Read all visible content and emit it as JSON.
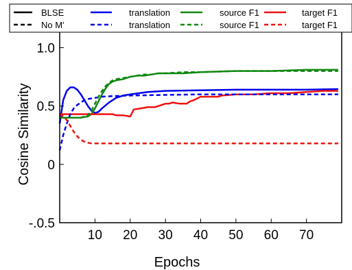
{
  "chart_data": {
    "type": "line",
    "xlabel": "Epochs",
    "ylabel": "Cosine Similarity",
    "xlim": [
      0,
      80
    ],
    "ylim": [
      -0.5,
      1.25
    ],
    "xticks": [
      10,
      20,
      30,
      40,
      50,
      60,
      70
    ],
    "yticks": [
      {
        "value": -0.5,
        "label": "-.0.5"
      },
      {
        "value": 0,
        "label": "0"
      },
      {
        "value": 0.5,
        "label": "0.5"
      },
      {
        "value": 1.0,
        "label": "1.0"
      }
    ],
    "grid": false,
    "legend_placement": "top",
    "legend": {
      "row_labels": [
        "BLSE",
        "No M'"
      ],
      "column_labels": [
        "translation",
        "source F1",
        "target F1"
      ]
    },
    "series": [
      {
        "legend_row": 0,
        "legend_col": 0,
        "color": "#0000ee",
        "dash": "solid",
        "x": [
          0,
          1,
          2,
          3,
          4,
          5,
          6,
          7,
          8,
          9,
          10,
          11,
          12,
          14,
          16,
          18,
          20,
          25,
          30,
          40,
          50,
          60,
          70,
          79
        ],
        "y": [
          0.35,
          0.55,
          0.63,
          0.66,
          0.66,
          0.64,
          0.6,
          0.55,
          0.5,
          0.46,
          0.44,
          0.45,
          0.48,
          0.53,
          0.57,
          0.59,
          0.6,
          0.62,
          0.63,
          0.635,
          0.64,
          0.64,
          0.64,
          0.645
        ]
      },
      {
        "legend_row": 0,
        "legend_col": 1,
        "color": "#118811",
        "dash": "solid",
        "x": [
          0,
          2,
          4,
          6,
          8,
          9,
          10,
          11,
          12,
          13,
          14,
          15,
          16,
          18,
          20,
          22,
          24,
          26,
          28,
          30,
          35,
          40,
          50,
          60,
          70,
          79
        ],
        "y": [
          0.4,
          0.4,
          0.4,
          0.4,
          0.41,
          0.43,
          0.48,
          0.54,
          0.6,
          0.65,
          0.69,
          0.71,
          0.72,
          0.73,
          0.75,
          0.76,
          0.76,
          0.77,
          0.78,
          0.78,
          0.78,
          0.79,
          0.8,
          0.8,
          0.81,
          0.81
        ]
      },
      {
        "legend_row": 0,
        "legend_col": 2,
        "color": "#ee1111",
        "dash": "solid",
        "x": [
          0,
          5,
          10,
          14,
          15,
          16,
          18,
          20,
          21,
          23,
          25,
          26,
          27,
          28,
          30,
          31,
          32,
          34,
          36,
          37,
          38,
          40,
          45,
          46,
          50,
          55,
          60,
          65,
          70,
          75,
          79
        ],
        "y": [
          0.43,
          0.43,
          0.43,
          0.43,
          0.43,
          0.42,
          0.42,
          0.41,
          0.47,
          0.48,
          0.49,
          0.49,
          0.49,
          0.5,
          0.52,
          0.52,
          0.53,
          0.52,
          0.52,
          0.54,
          0.55,
          0.58,
          0.58,
          0.59,
          0.6,
          0.6,
          0.61,
          0.61,
          0.62,
          0.63,
          0.63
        ]
      },
      {
        "legend_row": 1,
        "legend_col": 0,
        "color": "#0000ee",
        "dash": "dashed",
        "x": [
          0,
          1,
          2,
          3,
          4,
          5,
          6,
          7,
          8,
          10,
          12,
          15,
          20,
          30,
          40,
          50,
          60,
          70,
          79
        ],
        "y": [
          0.12,
          0.25,
          0.35,
          0.43,
          0.48,
          0.51,
          0.53,
          0.55,
          0.56,
          0.57,
          0.58,
          0.585,
          0.59,
          0.595,
          0.6,
          0.6,
          0.6,
          0.6,
          0.6
        ]
      },
      {
        "legend_row": 1,
        "legend_col": 1,
        "color": "#118811",
        "dash": "dashed",
        "x": [
          0,
          2,
          4,
          6,
          8,
          9,
          10,
          11,
          12,
          13,
          14,
          15,
          16,
          18,
          20,
          22,
          24,
          26,
          28,
          30,
          35,
          40,
          50,
          60,
          70,
          79
        ],
        "y": [
          0.4,
          0.4,
          0.4,
          0.4,
          0.42,
          0.46,
          0.52,
          0.58,
          0.63,
          0.67,
          0.7,
          0.72,
          0.73,
          0.74,
          0.75,
          0.76,
          0.77,
          0.77,
          0.78,
          0.78,
          0.79,
          0.79,
          0.8,
          0.8,
          0.8,
          0.8
        ]
      },
      {
        "legend_row": 1,
        "legend_col": 2,
        "color": "#ee1111",
        "dash": "dashed",
        "x": [
          0,
          1,
          2,
          3,
          4,
          5,
          6,
          7,
          8,
          9,
          10,
          12,
          15,
          20,
          30,
          40,
          50,
          60,
          70,
          79
        ],
        "y": [
          0.43,
          0.41,
          0.38,
          0.33,
          0.28,
          0.24,
          0.21,
          0.195,
          0.185,
          0.18,
          0.18,
          0.18,
          0.18,
          0.18,
          0.18,
          0.18,
          0.18,
          0.18,
          0.18,
          0.18
        ]
      }
    ]
  }
}
